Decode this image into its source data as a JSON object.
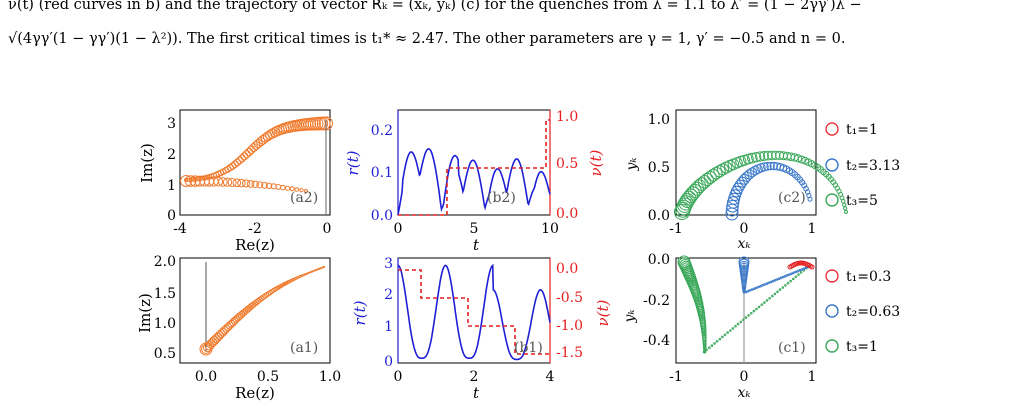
{
  "caption": {
    "line1": "ν(t) (red curves in b) and the trajectory of vector R⃗ₖ = (xₖ, yₖ) (c) for the quenches from λ = 1.1 to λ′ = (1 − 2γγ′)λ −",
    "line2": "√(4γγ′(1 − γγ′)(1 − λ²)). The first critical times is t₁* ≈ 2.47. The other parameters are γ = 1, γ′ = −0.5 and n = 0."
  },
  "panels": {
    "a2": {
      "label": "(a2)",
      "xlabel": "Re(z)",
      "ylabel": "Im(z)",
      "xticks": [
        "-4",
        "-2",
        "0"
      ],
      "yticks": [
        "0",
        "1",
        "2",
        "3"
      ]
    },
    "a1": {
      "label": "(a1)",
      "xlabel": "Re(z)",
      "ylabel": "Im(z)",
      "xticks": [
        "0.0",
        "0.5",
        "1.0"
      ],
      "yticks": [
        "0.5",
        "1.0",
        "1.5",
        "2.0"
      ]
    },
    "b2": {
      "label": "(b2)",
      "xlabel": "t",
      "ylabel_left": "r(t)",
      "ylabel_right": "ν(t)",
      "xticks": [
        "0",
        "5",
        "10"
      ],
      "yticks_left": [
        "0.0",
        "0.1",
        "0.2"
      ],
      "yticks_right": [
        "0.0",
        "0.5",
        "1.0"
      ]
    },
    "b1": {
      "label": "(b1)",
      "xlabel": "t",
      "ylabel_left": "r(t)",
      "ylabel_right": "ν(t)",
      "xticks": [
        "0",
        "2",
        "4"
      ],
      "yticks_left": [
        "0",
        "1",
        "2",
        "3"
      ],
      "yticks_right": [
        "0.0",
        "-0.5",
        "-1.0",
        "-1.5"
      ]
    },
    "c2": {
      "label": "(c2)",
      "xlabel": "xₖ",
      "ylabel": "yₖ",
      "xticks": [
        "-1",
        "0",
        "1"
      ],
      "yticks": [
        "0.0",
        "0.5",
        "1.0"
      ]
    },
    "c1": {
      "label": "(c1)",
      "xlabel": "xₖ",
      "ylabel": "yₖ",
      "xticks": [
        "-1",
        "0",
        "1"
      ],
      "yticks": [
        "0.0",
        "-0.2",
        "-0.4"
      ]
    }
  },
  "legend_top": [
    {
      "text": "t₁=1",
      "color": "#e8383d"
    },
    {
      "text": "t₂=3.13",
      "color": "#3a78c9"
    },
    {
      "text": "t₃=5",
      "color": "#3aa85a"
    }
  ],
  "legend_bottom": [
    {
      "text": "t₁=0.3",
      "color": "#e8383d"
    },
    {
      "text": "t₂=0.63",
      "color": "#3a78c9"
    },
    {
      "text": "t₃=1",
      "color": "#3aa85a"
    }
  ],
  "colors": {
    "orange": "#f07a2c",
    "blue": "#1f1fd6",
    "red": "#e61e1e",
    "green": "#3aa85a",
    "cblue": "#3a78c9"
  }
}
